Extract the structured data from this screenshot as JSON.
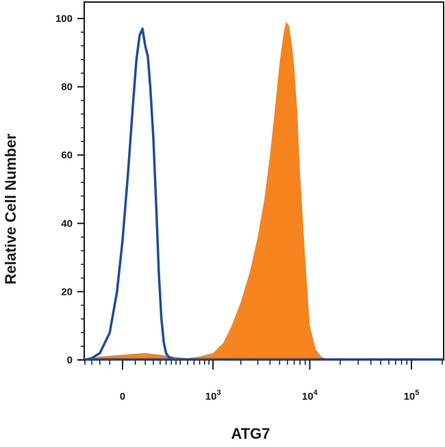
{
  "chart_data": {
    "type": "area",
    "title": "",
    "xlabel": "ATG7",
    "ylabel": "Relative Cell Number",
    "x_scale": "biexponential",
    "x_range": [
      -500,
      200000
    ],
    "ylim": [
      0,
      105
    ],
    "grid": false,
    "legend": "none",
    "x_ticks": [
      {
        "value": 0,
        "base": "0",
        "exp": ""
      },
      {
        "value": 1000,
        "base": "10",
        "exp": "3"
      },
      {
        "value": 10000,
        "base": "10",
        "exp": "4"
      },
      {
        "value": 100000,
        "base": "10",
        "exp": "5"
      }
    ],
    "y_ticks": [
      0,
      20,
      40,
      60,
      80,
      100
    ],
    "series": [
      {
        "style": "filled",
        "color": "#f5841f",
        "x": [
          -200,
          -100,
          0,
          100,
          200,
          300,
          500,
          700,
          1000,
          1300,
          1600,
          2000,
          2500,
          3000,
          3500,
          4000,
          4500,
          5000,
          5500,
          5800,
          6200,
          6600,
          7000,
          7500,
          8000,
          9000,
          10000,
          11500,
          13000,
          15000
        ],
        "values": [
          0,
          1,
          1.5,
          2,
          1.5,
          1,
          0.5,
          1,
          2,
          5,
          10,
          17,
          26,
          36,
          47,
          60,
          74,
          87,
          96,
          99,
          98,
          93,
          86,
          73,
          55,
          30,
          10,
          3,
          1,
          0
        ]
      },
      {
        "style": "outline",
        "color": "#1f4e99",
        "x": [
          -250,
          -200,
          -150,
          -100,
          -50,
          -20,
          0,
          20,
          40,
          55,
          70,
          85,
          100,
          115,
          130,
          150,
          170,
          190,
          210,
          230,
          250,
          270,
          300,
          340
        ],
        "values": [
          0,
          0,
          0.5,
          2,
          8,
          20,
          35,
          55,
          75,
          88,
          95,
          97,
          92,
          89,
          80,
          65,
          45,
          25,
          12,
          5,
          2,
          1,
          0.5,
          0
        ]
      }
    ]
  }
}
